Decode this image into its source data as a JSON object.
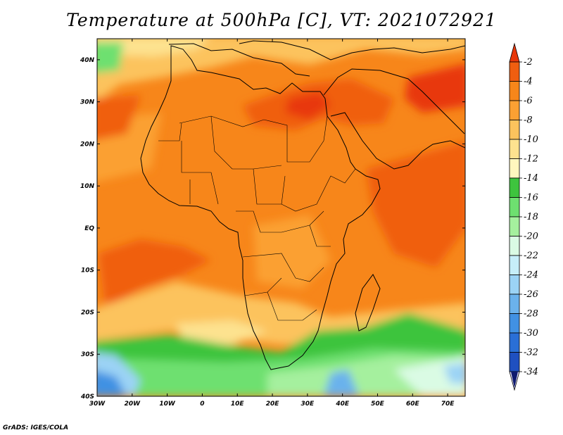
{
  "title": "Temperature at 500hPa [C], VT: 2021072921",
  "credit": "GrADS: IGES/COLA",
  "map": {
    "projection": "lat-lon",
    "lon_range": [
      -30,
      75
    ],
    "lat_range": [
      -40,
      45
    ],
    "x_ticks": [
      "30W",
      "20W",
      "10W",
      "0",
      "10E",
      "20E",
      "30E",
      "40E",
      "50E",
      "60E",
      "70E"
    ],
    "y_ticks": [
      "40N",
      "30N",
      "20N",
      "10N",
      "EQ",
      "10S",
      "20S",
      "30S",
      "40S"
    ]
  },
  "colorbar": {
    "labels": [
      "-2",
      "-4",
      "-6",
      "-8",
      "-10",
      "-12",
      "-14",
      "-16",
      "-18",
      "-20",
      "-22",
      "-24",
      "-26",
      "-28",
      "-30",
      "-32",
      "-34"
    ],
    "colors": [
      "#e8370a",
      "#f05e10",
      "#f7861a",
      "#fba033",
      "#fcc35d",
      "#fde28f",
      "#fff7be",
      "#3ec43e",
      "#6ee070",
      "#a5f09e",
      "#dafbe4",
      "#c6eef9",
      "#9bd3f5",
      "#6bb2ec",
      "#4191e3",
      "#2a6fd6",
      "#1f50c0",
      "#0e1a6e"
    ]
  },
  "chart_data": {
    "type": "heatmap",
    "title": "Temperature at 500hPa [C], VT: 2021072921",
    "variable": "Temperature at 500hPa",
    "units": "C",
    "valid_time": "2021072921",
    "x_range": [
      -30,
      75
    ],
    "y_range": [
      -40,
      45
    ],
    "x_tick_labels": [
      "30W",
      "20W",
      "10W",
      "0",
      "10E",
      "20E",
      "30E",
      "40E",
      "50E",
      "60E",
      "70E"
    ],
    "y_tick_labels": [
      "40N",
      "30N",
      "20N",
      "10N",
      "EQ",
      "10S",
      "20S",
      "30S",
      "40S"
    ],
    "colorbar_levels": [
      -2,
      -4,
      -6,
      -8,
      -10,
      -12,
      -14,
      -16,
      -18,
      -20,
      -22,
      -24,
      -26,
      -28,
      -30,
      -32,
      -34
    ],
    "colorbar_min": -34,
    "colorbar_max": -2
  }
}
